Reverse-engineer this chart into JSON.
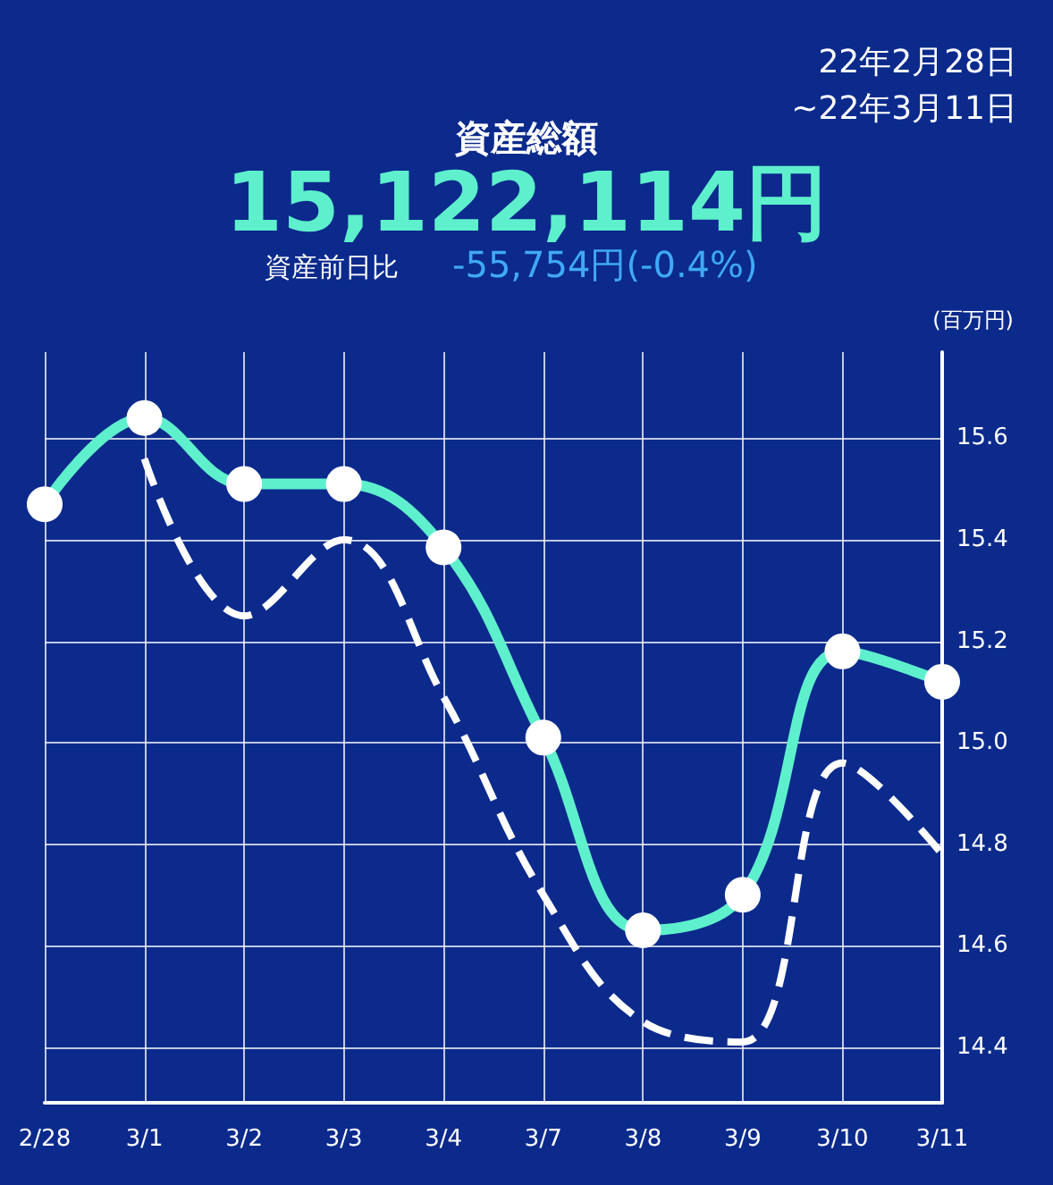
{
  "chart_data": {
    "type": "line",
    "title": "資産総額",
    "ylabel": "(百万円)",
    "annotations": [
      "22年2月28日\n~22年3月11日",
      "15,122,114円",
      "資産前日比",
      "-55,754円(-0.4%)"
    ],
    "categories": [
      "2/28",
      "3/1",
      "3/2",
      "3/3",
      "3/4",
      "3/7",
      "3/8",
      "3/9",
      "3/10",
      "3/11"
    ],
    "series": [
      {
        "color": "#5ef0cc",
        "marker": "circle",
        "line_style": "solid",
        "values": [
          15.47,
          15.64,
          15.51,
          15.51,
          15.385,
          15.01,
          14.63,
          14.7,
          15.18,
          15.12
        ]
      },
      {
        "color": "#ffffff",
        "marker": "none",
        "line_style": "dashed",
        "values": [
          null,
          15.56,
          15.25,
          15.4,
          15.09,
          14.7,
          14.45,
          14.41,
          14.96,
          14.78
        ]
      }
    ],
    "ylim": [
      14.29,
      15.77
    ],
    "yticks": [
      14.4,
      14.6,
      14.8,
      {
        "value": 15.0,
        "label": "15.0"
      },
      15.2,
      15.4,
      15.6
    ],
    "grid": true
  }
}
